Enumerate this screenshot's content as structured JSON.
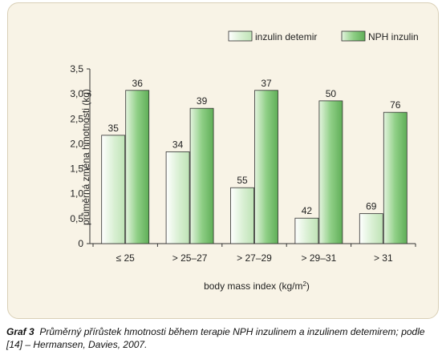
{
  "chart_data": {
    "type": "bar",
    "categories": [
      "≤ 25",
      "> 25–27",
      "> 27–29",
      "> 29–31",
      "> 31"
    ],
    "series": [
      {
        "name": "inzulin detemir",
        "values": [
          2.17,
          1.84,
          1.12,
          0.51,
          0.6
        ],
        "labels": [
          "35",
          "34",
          "55",
          "42",
          "69"
        ],
        "color": "#d8efd2"
      },
      {
        "name": "NPH inzulin",
        "values": [
          3.07,
          2.71,
          3.07,
          2.86,
          2.63
        ],
        "labels": [
          "36",
          "39",
          "37",
          "50",
          "76"
        ],
        "color": "#8fcf86"
      }
    ],
    "yticks": [
      "0",
      "0,5",
      "1,0",
      "1,5",
      "2,0",
      "2,5",
      "3,0",
      "3,5"
    ],
    "ylim": [
      0,
      3.5
    ],
    "ylabel": "průměrná změna hmotnosti (kg)",
    "xlabel": "body mass index (kg/m²)",
    "legend_position": "top-right",
    "grid": false
  },
  "caption": {
    "label": "Graf 3",
    "text": "Průměrný přírůstek hmotnosti během terapie NPH inzulinem a inzulinem detemirem; podle [14] – Hermansen, Davies, 2007."
  }
}
